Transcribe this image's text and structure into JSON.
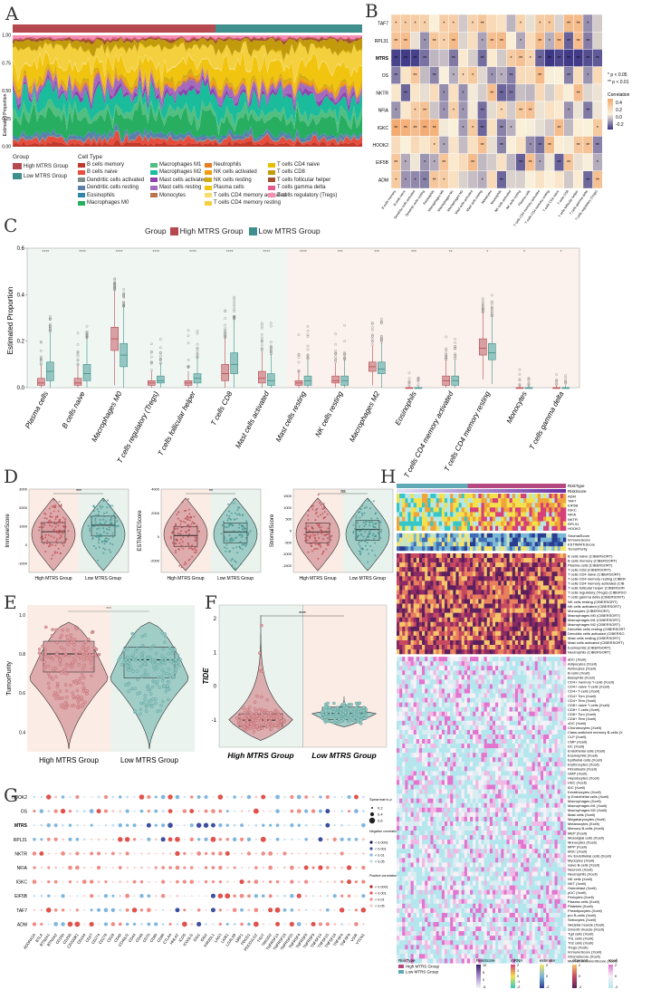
{
  "panels": {
    "a": "A",
    "b": "B",
    "c": "C",
    "d": "D",
    "e": "E",
    "f": "F",
    "g": "G",
    "h": "H"
  },
  "colors": {
    "high": "#B6484F",
    "low": "#3F8F8C",
    "high_light": "#D9A0A3",
    "low_light": "#94C5C0",
    "bg_pink": "#FBEDE6",
    "bg_green": "#EAF3EE"
  },
  "panelA": {
    "group_label": "Group",
    "cell_type_label": "Cell Type",
    "ylabel": "Estimated Proportion",
    "yticks": [
      "1.00",
      "0.75",
      "0.50",
      "0.25",
      "0.00"
    ],
    "groups": [
      {
        "name": "High MTRS Group",
        "color": "#B6484F"
      },
      {
        "name": "Low MTRS Group",
        "color": "#3F8F8C"
      }
    ],
    "cell_types": [
      {
        "name": "B cells memory",
        "color": "#C0392B"
      },
      {
        "name": "B cells naive",
        "color": "#E74C3C"
      },
      {
        "name": "Dendritic cells activated",
        "color": "#7F8C8D"
      },
      {
        "name": "Dendritic cells resting",
        "color": "#5D7EA8"
      },
      {
        "name": "Eosinophils",
        "color": "#2E86AB"
      },
      {
        "name": "Macrophages M0",
        "color": "#27AE60"
      },
      {
        "name": "Macrophages M1",
        "color": "#52BE80"
      },
      {
        "name": "Macrophages M2",
        "color": "#1ABC9C"
      },
      {
        "name": "Mast cells activated",
        "color": "#8E44AD"
      },
      {
        "name": "Mast cells resting",
        "color": "#A569BD"
      },
      {
        "name": "Monocytes",
        "color": "#B8764F"
      },
      {
        "name": "Neutrophils",
        "color": "#E67E22"
      },
      {
        "name": "NK cells activated",
        "color": "#F39C12"
      },
      {
        "name": "NK cells resting",
        "color": "#D4AC0D"
      },
      {
        "name": "Plasma cells",
        "color": "#F1C40F"
      },
      {
        "name": "T cells CD4 memory activated",
        "color": "#F7DC6F"
      },
      {
        "name": "T cells CD4 memory resting",
        "color": "#F4D03F"
      },
      {
        "name": "T cells CD4 naive",
        "color": "#E5BE01"
      },
      {
        "name": "T cells CD8",
        "color": "#C29B0C"
      },
      {
        "name": "T cells follicular helper",
        "color": "#A0522D"
      },
      {
        "name": "T cells gamma delta",
        "color": "#E35A8E"
      },
      {
        "name": "T cells regulatory (Tregs)",
        "color": "#F48FB1"
      }
    ]
  },
  "panelB": {
    "rows": [
      "TAF7",
      "RPL31",
      "MTRS",
      "OS",
      "NKTR",
      "NFIA",
      "IGKC",
      "HOOK2",
      "EIF5B",
      "ADM"
    ],
    "cols": [
      "B cells memory",
      "B cells naive",
      "Dendritic cells activated",
      "Dendritic cells resting",
      "Eosinophils",
      "Macrophages M0",
      "Macrophages M1",
      "Macrophages M2",
      "Mast cells activated",
      "Mast cells resting",
      "Monocytes",
      "Neutrophils",
      "NK cells activated",
      "NK cells resting",
      "Plasma cells",
      "T cells CD4 memory activated",
      "T cells CD4 memory resting",
      "T cells CD4 naive",
      "T cells CD8",
      "T cells follicular helper",
      "T cells gamma delta",
      "T cells regulatory (Tregs)"
    ],
    "sig_note1": "* p < 0.05",
    "sig_note2": "** p < 0.01",
    "legend_title": "Correlation",
    "legend_ticks": [
      "0.4",
      "0.2",
      "0.0",
      "-0.2"
    ]
  },
  "chart_data": [
    {
      "type": "bar",
      "title": "Panel A stacked cell proportions",
      "ylabel": "Estimated Proportion",
      "ylim": [
        0,
        1
      ]
    },
    {
      "type": "heatmap",
      "title": "Panel B correlation"
    },
    {
      "type": "box",
      "title": "Panel C",
      "legend_title": "Group",
      "legend": [
        "High MTRS Group",
        "Low MTRS Group"
      ],
      "ylabel": "Estimated Proportion",
      "ylim": [
        0,
        0.6
      ],
      "yticks": [
        "0.6",
        "0.4",
        "0.2",
        "0.0"
      ],
      "categories": [
        "Plasma cells",
        "B cells naive",
        "Macrophages M0",
        "T cells regulatory (Tregs)",
        "T cells follicular helper",
        "T cells CD8",
        "Mast cells activated",
        "Mast cells resting",
        "NK cells resting",
        "Macrophages M2",
        "Eosinophils",
        "T cells CD4 memory activated",
        "T cells CD4 memory resting",
        "Monocytes",
        "T cells gamma delta"
      ],
      "significance": [
        "****",
        "****",
        "****",
        "****",
        "****",
        "****",
        "****",
        "****",
        "***",
        "***",
        "***",
        "**",
        "*",
        "*",
        "*"
      ],
      "series": [
        {
          "name": "High MTRS Group",
          "medians": [
            0.02,
            0.02,
            0.21,
            0.02,
            0.02,
            0.06,
            0.04,
            0.02,
            0.03,
            0.09,
            0.0,
            0.03,
            0.17,
            0.0,
            0.0
          ],
          "q1": [
            0.01,
            0.01,
            0.16,
            0.01,
            0.01,
            0.03,
            0.02,
            0.01,
            0.02,
            0.07,
            0.0,
            0.01,
            0.14,
            0.0,
            0.0
          ],
          "q3": [
            0.04,
            0.04,
            0.26,
            0.03,
            0.03,
            0.1,
            0.07,
            0.03,
            0.05,
            0.11,
            0.0,
            0.05,
            0.21,
            0.0,
            0.0
          ]
        },
        {
          "name": "Low MTRS Group",
          "medians": [
            0.07,
            0.06,
            0.14,
            0.03,
            0.04,
            0.1,
            0.03,
            0.03,
            0.03,
            0.08,
            0.0,
            0.03,
            0.15,
            0.0,
            0.0
          ],
          "q1": [
            0.03,
            0.03,
            0.09,
            0.02,
            0.02,
            0.06,
            0.01,
            0.01,
            0.01,
            0.06,
            0.0,
            0.01,
            0.12,
            0.0,
            0.0
          ],
          "q3": [
            0.11,
            0.1,
            0.19,
            0.05,
            0.06,
            0.15,
            0.06,
            0.05,
            0.05,
            0.11,
            0.0,
            0.05,
            0.19,
            0.0,
            0.0
          ]
        }
      ]
    },
    {
      "type": "violin",
      "title": "Panel D",
      "plots": [
        {
          "ylabel": "ImmuneScore",
          "sig": "***",
          "yticks": [
            "3000",
            "2000",
            "1000",
            "0",
            "-1000"
          ],
          "ylim": [
            -1500,
            3000
          ],
          "categories": [
            "High MTRS Group",
            "Low MTRS Group"
          ],
          "medians": [
            700,
            1050
          ]
        },
        {
          "ylabel": "ESTIMATEScore",
          "sig": "**",
          "yticks": [
            "4000",
            "2000",
            "0",
            "-2000"
          ],
          "ylim": [
            -3000,
            4000
          ],
          "categories": [
            "High MTRS Group",
            "Low MTRS Group"
          ],
          "medians": [
            100,
            400
          ]
        },
        {
          "ylabel": "StromalScore",
          "sig": "ns",
          "yticks": [
            "1500",
            "1000",
            "500",
            "0",
            "-500",
            "-1000",
            "-1500"
          ],
          "ylim": [
            -1800,
            1800
          ],
          "categories": [
            "High MTRS Group",
            "Low MTRS Group"
          ],
          "medians": [
            -50,
            50
          ]
        }
      ]
    },
    {
      "type": "violin",
      "title": "Panel E",
      "ylabel": "TumorPurity",
      "sig": "***",
      "yticks": [
        "1.0",
        "0.8",
        "0.6",
        "0.4"
      ],
      "ylim": [
        0.3,
        1.05
      ],
      "categories": [
        "High MTRS Group",
        "Low MTRS Group"
      ],
      "medians": [
        0.8,
        0.77
      ]
    },
    {
      "type": "violin",
      "title": "Panel F",
      "ylabel": "TIDE",
      "sig": "****",
      "yticks": [
        "2",
        "1",
        "0",
        "-1"
      ],
      "ylim": [
        -1.8,
        2.4
      ],
      "categories": [
        "High MTRS Group",
        "Low MTRS Group"
      ],
      "medians": [
        -1.0,
        -0.8
      ]
    },
    {
      "type": "scatter",
      "title": "Panel G dot plot",
      "rows": [
        "HOOK2",
        "OS",
        "MTRS",
        "RPL31",
        "NKTR",
        "NFIA",
        "IGKC",
        "EIF5B",
        "TAF7",
        "ADM"
      ],
      "columns": [
        "ADORA2A",
        "BTLA",
        "BTN2A1",
        "BTN3A2",
        "CD160",
        "CD200",
        "CD200R1",
        "CD244",
        "CD27",
        "CD274",
        "CD276",
        "CD28",
        "CD40",
        "CD40LG",
        "CD44",
        "CD48",
        "CD70",
        "CD80",
        "CD86",
        "CTLA4",
        "HHLA2",
        "ICOS",
        "ICOSLG",
        "IDO1",
        "IDO2",
        "KIR3DL1",
        "LAG3",
        "LAIR1",
        "LGALS9",
        "NRP1",
        "PDCD1",
        "PDCD1LG2",
        "TIGIT",
        "TMIGD2",
        "TNFRSF14",
        "TNFRSF18",
        "TNFRSF25",
        "TNFRSF4",
        "TNFRSF8",
        "TNFRSF9",
        "TNFSF14",
        "TNFSF15",
        "TNFSF18",
        "TNFSF4",
        "TNFSF9",
        "VSIR",
        "VTCN1"
      ],
      "legend_size_title": "Spearman's ρ",
      "size_values": [
        "0.2",
        "0.4",
        "0.6"
      ],
      "neg_title": "Negative correlation p-value",
      "pos_title": "Positive correlation p-value",
      "p_levels": [
        "< 0.0001",
        "< 0.001",
        "< 0.01",
        "< 0.05"
      ]
    },
    {
      "type": "heatmap",
      "title": "Panel H",
      "legend_risktype": "RiskType",
      "legend_riskscore": "RiskScore",
      "risk_types": [
        "High MTRS Group",
        "Low MTRS Group"
      ],
      "scale_titles": [
        "RiskScore",
        "mRNA",
        "estimate",
        "cibersort",
        "Xcell"
      ],
      "scale_ticks": [
        [
          "10",
          "5",
          "0",
          "-5"
        ],
        [
          "2",
          "1",
          "0",
          "-1",
          "-2"
        ],
        [
          "2",
          "0",
          "-2"
        ],
        [
          "2",
          "0",
          "-2"
        ],
        [
          "2",
          "0",
          "-2"
        ]
      ]
    }
  ],
  "panelH": {
    "top_labels": [
      "RiskType",
      "RiskScore"
    ],
    "genes": [
      "ADM",
      "TAF7",
      "EIF5B",
      "IGKC",
      "NFIA",
      "NKTR",
      "RPL31",
      "HOOK2"
    ],
    "scores": [
      "StromalScore",
      "ImmuneScore",
      "ESTIMATEScore",
      "TumorPurity"
    ],
    "cibersort": [
      "B cells naive (CIBERSORT)",
      "B cells memory (CIBERSORT)",
      "Plasma cells (CIBERSORT)",
      "T cells CD8 (CIBERSORT)",
      "T cells CD4 naive (CIBERSORT)",
      "T cells CD4 memory resting (CIBER",
      "T cells CD4 memory activated (CIB",
      "T cells follicular helper (CIBERSOR",
      "T cells regulatory (Tregs) (CIBERSO",
      "T cells gamma delta (CIBERSORT)",
      "NK cells resting (CIBERSORT)",
      "NK cells activated (CIBERSORT)",
      "Monocytes (CIBERSORT)",
      "Macrophages M0 (CIBERSORT)",
      "Macrophages M1 (CIBERSORT)",
      "Macrophages M2 (CIBERSORT)",
      "Dendritic cells resting (CIBERSORT",
      "Dendritic cells activated (CIBERSO",
      "Mast cells resting (CIBERSORT)",
      "Mast cells activated (CIBERSORT)",
      "Eosinophils (CIBERSORT)",
      "Neutrophils (CIBERSORT)"
    ],
    "xcell": [
      "aDC (Xcell)",
      "Adipocytes (Xcell)",
      "Astrocytes (Xcell)",
      "B-cells (Xcell)",
      "Basophils (Xcell)",
      "CD4+ memory T-cells (Xcell)",
      "CD4+ naive T-cells (Xcell)",
      "CD4+ T-cells (Xcell)",
      "CD4+ Tcm (Xcell)",
      "CD4+ Tem (Xcell)",
      "CD8+ naive T-cells (Xcell)",
      "CD8+ T-cells (Xcell)",
      "CD8+ Tcm (Xcell)",
      "CD8+ Tem (Xcell)",
      "cDC (Xcell)",
      "Chondrocytes (Xcell)",
      "Class-switched memory B-cells (X",
      "CLP (Xcell)",
      "CMP (Xcell)",
      "DC (Xcell)",
      "Endothelial cells (Xcell)",
      "Eosinophils (Xcell)",
      "Epithelial cells (Xcell)",
      "Erythrocytes (Xcell)",
      "Fibroblasts (Xcell)",
      "GMP (Xcell)",
      "Hepatocytes (Xcell)",
      "HSC (Xcell)",
      "iDC (Xcell)",
      "Keratinocytes (Xcell)",
      "ly Endothelial cells (Xcell)",
      "Macrophages (Xcell)",
      "Macrophages M1 (Xcell)",
      "Macrophages M2 (Xcell)",
      "Mast cells (Xcell)",
      "Megakaryocytes (Xcell)",
      "Melanocytes (Xcell)",
      "Memory B-cells (Xcell)",
      "MEP (Xcell)",
      "Mesangial cells (Xcell)",
      "Monocytes (Xcell)",
      "MPP (Xcell)",
      "MSC (Xcell)",
      "mv Endothelial cells (Xcell)",
      "Myocytes (Xcell)",
      "naive B-cells (Xcell)",
      "Neurons (Xcell)",
      "Neutrophils (Xcell)",
      "NK cells (Xcell)",
      "NKT (Xcell)",
      "Osteoblast (Xcell)",
      "pDC (Xcell)",
      "Pericytes (Xcell)",
      "Plasma cells (Xcell)",
      "Platelets (Xcell)",
      "Preadipocytes (Xcell)",
      "pro B-cells (Xcell)",
      "Sebocytes (Xcell)",
      "Skeletal muscle (Xcell)",
      "Smooth muscle (Xcell)",
      "Tgd cells (Xcell)",
      "Th1 cells (Xcell)",
      "Th2 cells (Xcell)",
      "Tregs (Xcell)",
      "ImmuneScore (Xcell)",
      "StromaScore (Xcell)",
      "MicroenvironmentScore (Xcell)"
    ]
  }
}
